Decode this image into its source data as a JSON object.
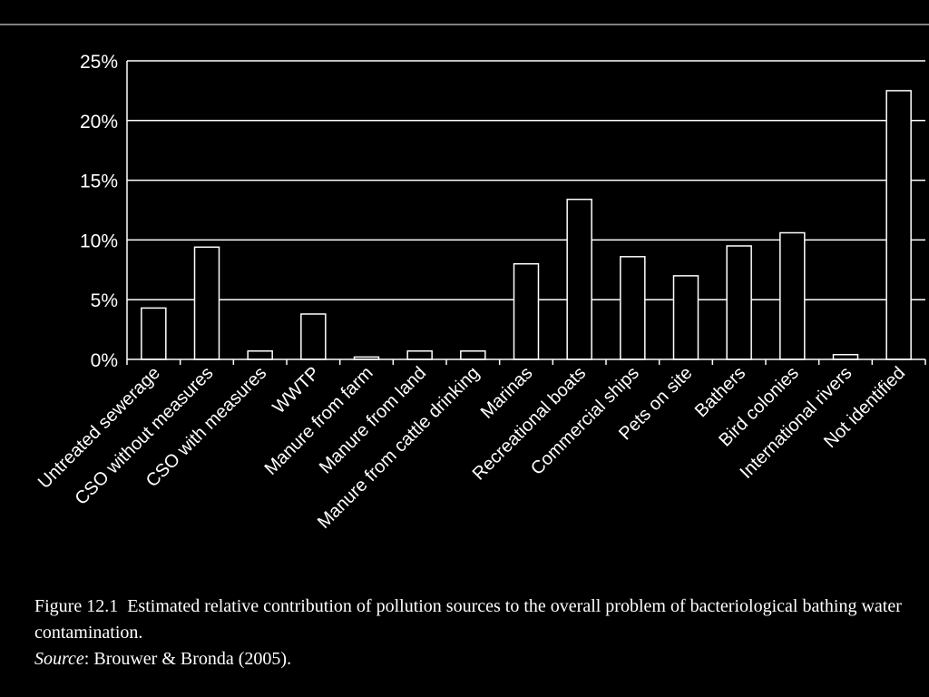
{
  "chart_data": {
    "type": "bar",
    "categories": [
      "Untreated sewerage",
      "CSO without measures",
      "CSO with measures",
      "WWTP",
      "Manure from farm",
      "Manure from land",
      "Manure from cattle drinking",
      "Marinas",
      "Recreational boats",
      "Commercial ships",
      "Pets on site",
      "Bathers",
      "Bird colonies",
      "International rivers",
      "Not identified"
    ],
    "values": [
      4.3,
      9.4,
      0.7,
      3.8,
      0.2,
      0.7,
      0.7,
      8.0,
      13.4,
      8.6,
      7.0,
      9.5,
      10.6,
      0.4,
      22.5
    ],
    "ylim": [
      0,
      25
    ],
    "yticks": [
      0,
      5,
      10,
      15,
      20,
      25
    ],
    "ytick_labels": [
      "0%",
      "5%",
      "10%",
      "15%",
      "20%",
      "25%"
    ],
    "grid": true,
    "colors": {
      "background": "#000000",
      "foreground": "#ffffff"
    }
  },
  "caption": {
    "figure_label": "Figure 12.1",
    "text": "Estimated relative contribution of pollution sources to the overall problem of bacteriological bathing water contamination.",
    "source_label": "Source",
    "source_text": ": Brouwer & Bronda (2005)."
  }
}
